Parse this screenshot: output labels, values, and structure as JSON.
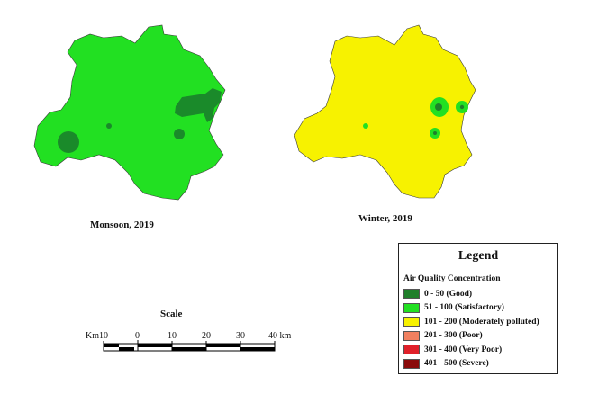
{
  "maps": [
    {
      "caption": "Monsoon, 2019",
      "base_color": "#22e022",
      "hotspot_color": "#1a8a2a"
    },
    {
      "caption": "Winter, 2019",
      "base_color": "#f7f200",
      "hotspot_color": "#22e022"
    }
  ],
  "legend": {
    "title": "Legend",
    "subtitle": "Air Quality Concentration",
    "items": [
      {
        "label": "0 - 50 (Good)",
        "color": "#1f7f2a"
      },
      {
        "label": "51 - 100 (Satisfactory)",
        "color": "#22e022"
      },
      {
        "label": "101 - 200 (Moderately polluted)",
        "color": "#f7f200"
      },
      {
        "label": "201 - 300 (Poor)",
        "color": "#f08060"
      },
      {
        "label": "301 - 400 (Very Poor)",
        "color": "#e0202a"
      },
      {
        "label": "401 - 500 (Severe)",
        "color": "#8a0a0a"
      }
    ]
  },
  "scale": {
    "title": "Scale",
    "labels": [
      "Km10",
      "0",
      "10",
      "20",
      "30",
      "40 km"
    ]
  }
}
